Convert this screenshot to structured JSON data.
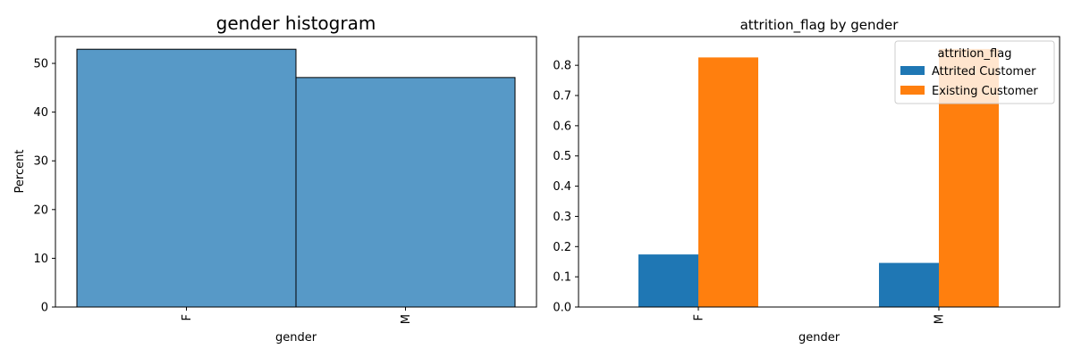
{
  "chart_data": [
    {
      "type": "bar",
      "title": "gender histogram",
      "xlabel": "gender",
      "ylabel": "Percent",
      "categories": [
        "F",
        "M"
      ],
      "values": [
        52.9,
        47.1
      ],
      "ylim": [
        0,
        55.5
      ],
      "yticks": [
        0,
        10,
        20,
        30,
        40,
        50
      ],
      "bar_color": "#5799c7",
      "edge_color": "#000000",
      "grid": false
    },
    {
      "type": "bar",
      "title": "attrition_flag by gender",
      "xlabel": "gender",
      "ylabel": "",
      "categories": [
        "F",
        "M"
      ],
      "series": [
        {
          "name": "Attrited Customer",
          "values": [
            0.174,
            0.146
          ],
          "color": "#1f77b4"
        },
        {
          "name": "Existing Customer",
          "values": [
            0.826,
            0.854
          ],
          "color": "#ff7f0e"
        }
      ],
      "ylim": [
        0,
        0.895
      ],
      "yticks": [
        "0.0",
        "0.1",
        "0.2",
        "0.3",
        "0.4",
        "0.5",
        "0.6",
        "0.7",
        "0.8"
      ],
      "legend": {
        "title": "attrition_flag",
        "placement": "top-right"
      },
      "grid": false
    }
  ]
}
